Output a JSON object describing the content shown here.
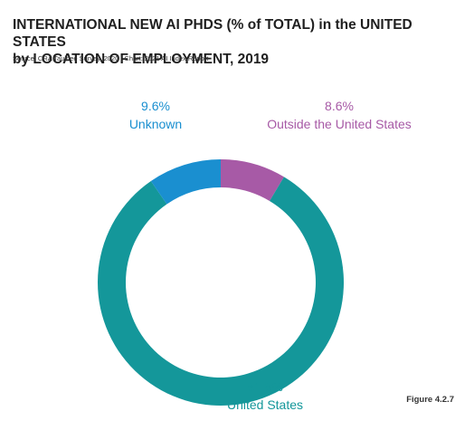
{
  "header": {
    "title_line1": "INTERNATIONAL NEW AI PHDS (% of TOTAL) in the UNITED STATES",
    "title_line2": "by LOCATION OF EMPLOYMENT, 2019",
    "source": "Source: CRA Taulbee Survey, 2020 | Chart: 2021 AI Index Report"
  },
  "figure_label": "Figure 4.2.7",
  "chart_data": {
    "type": "pie",
    "donut": true,
    "title": "INTERNATIONAL NEW AI PHDS (% of TOTAL) in the UNITED STATES by LOCATION OF EMPLOYMENT, 2019",
    "slices": [
      {
        "label": "Outside the United States",
        "value": 8.6,
        "display": "8.6%",
        "color": "#a75aa6"
      },
      {
        "label": "United States",
        "value": 81.8,
        "display": "81.8%",
        "color": "#14979a"
      },
      {
        "label": "Unknown",
        "value": 9.6,
        "display": "9.6%",
        "color": "#1a8fd0"
      }
    ]
  }
}
